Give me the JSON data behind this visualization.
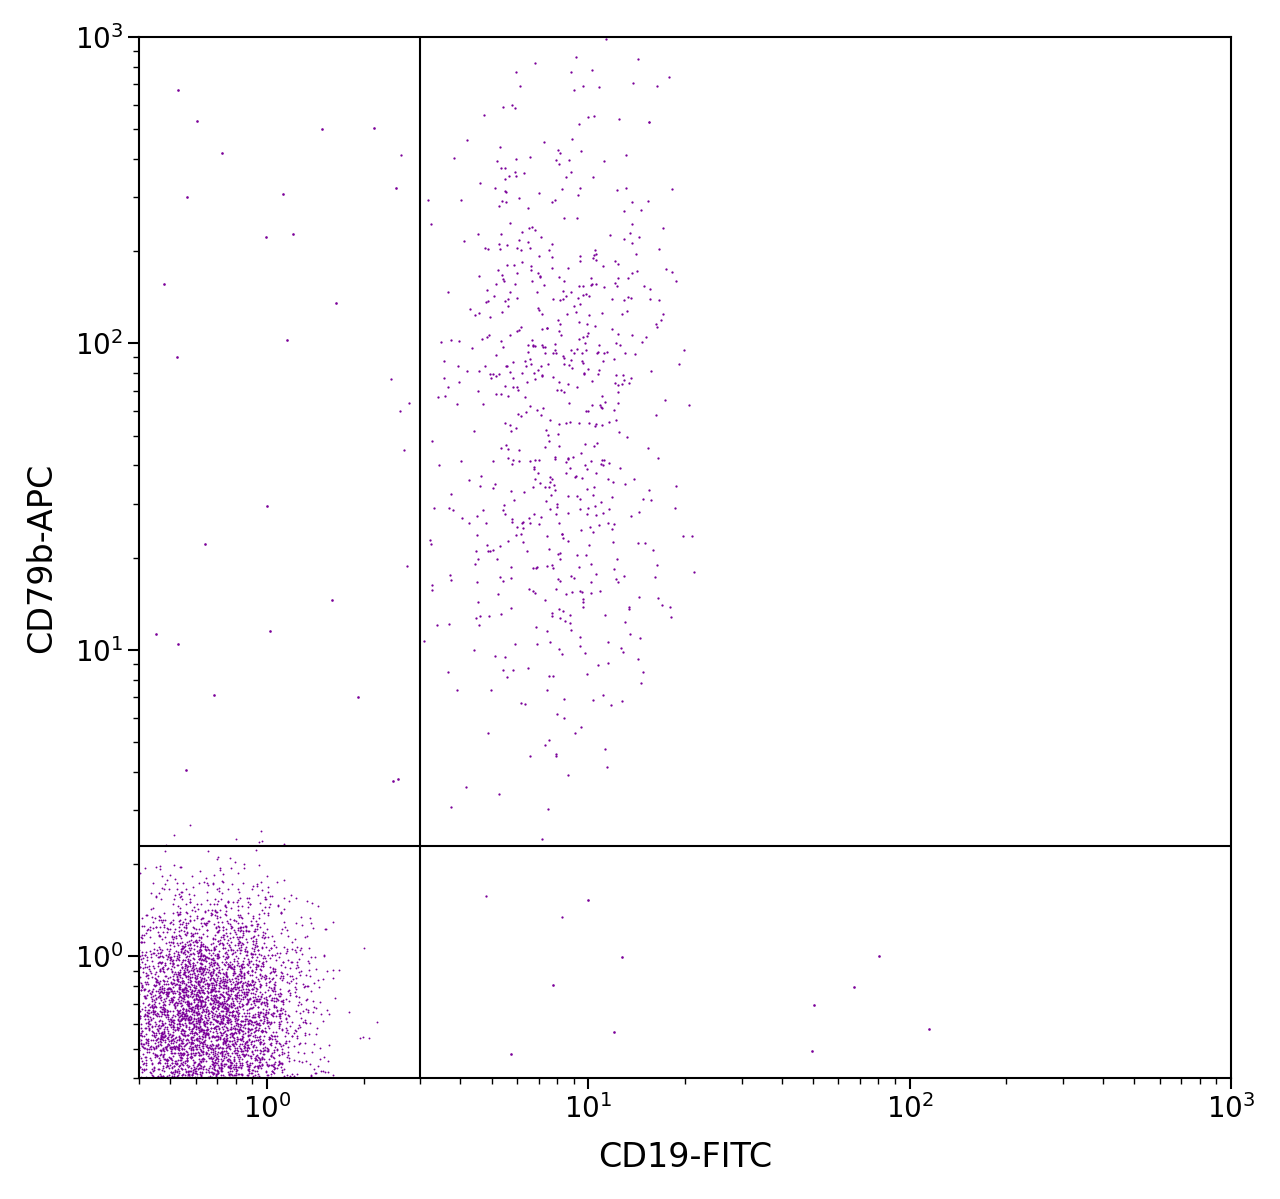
{
  "xlabel": "CD19-FITC",
  "ylabel": "CD79b-APC",
  "xlim_log": [
    0.4,
    1000
  ],
  "ylim_log": [
    0.4,
    1000
  ],
  "dot_color": "#7B0099",
  "dot_color2": "#5B0080",
  "dot_size": 1.8,
  "background_color": "#ffffff",
  "gate_x": 3.0,
  "gate_y": 2.3,
  "xlabel_fontsize": 24,
  "ylabel_fontsize": 24,
  "tick_fontsize": 20,
  "seed": 12345,
  "n_cluster1": 5000,
  "n_cluster2": 700
}
